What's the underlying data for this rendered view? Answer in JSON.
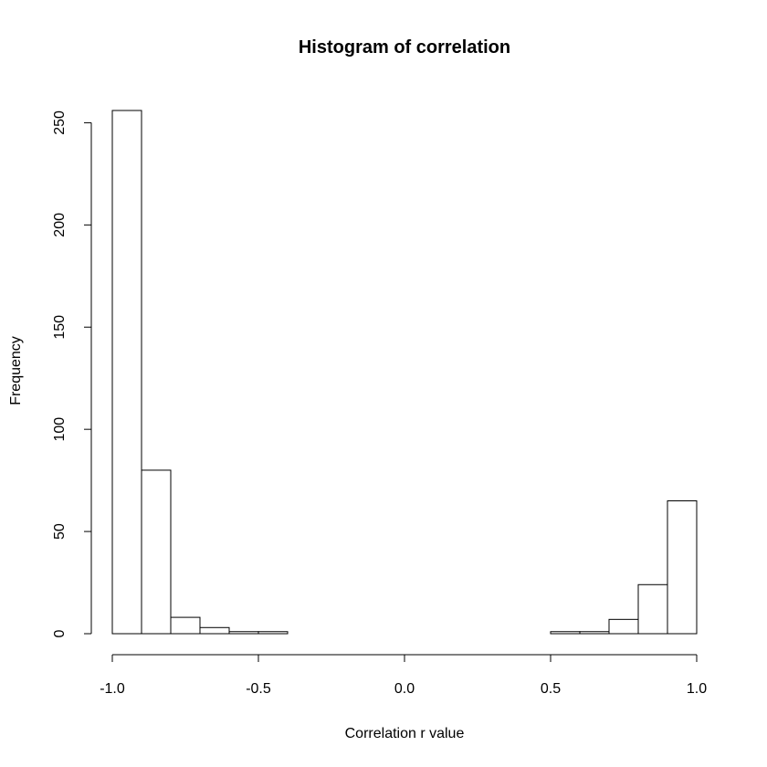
{
  "chart_data": {
    "type": "bar",
    "title": "Histogram of correlation",
    "xlabel": "Correlation r value",
    "ylabel": "Frequency",
    "xlim": [
      -1.0,
      1.0
    ],
    "ylim": [
      0,
      256
    ],
    "bin_width": 0.1,
    "bins": [
      {
        "from": -1.0,
        "to": -0.9,
        "value": 256
      },
      {
        "from": -0.9,
        "to": -0.8,
        "value": 80
      },
      {
        "from": -0.8,
        "to": -0.7,
        "value": 8
      },
      {
        "from": -0.7,
        "to": -0.6,
        "value": 3
      },
      {
        "from": -0.6,
        "to": -0.5,
        "value": 1
      },
      {
        "from": -0.5,
        "to": -0.4,
        "value": 1
      },
      {
        "from": -0.4,
        "to": -0.3,
        "value": 0
      },
      {
        "from": -0.3,
        "to": -0.2,
        "value": 0
      },
      {
        "from": -0.2,
        "to": -0.1,
        "value": 0
      },
      {
        "from": -0.1,
        "to": 0.0,
        "value": 0
      },
      {
        "from": 0.0,
        "to": 0.1,
        "value": 0
      },
      {
        "from": 0.1,
        "to": 0.2,
        "value": 0
      },
      {
        "from": 0.2,
        "to": 0.3,
        "value": 0
      },
      {
        "from": 0.3,
        "to": 0.4,
        "value": 0
      },
      {
        "from": 0.4,
        "to": 0.5,
        "value": 0
      },
      {
        "from": 0.5,
        "to": 0.6,
        "value": 1
      },
      {
        "from": 0.6,
        "to": 0.7,
        "value": 1
      },
      {
        "from": 0.7,
        "to": 0.8,
        "value": 7
      },
      {
        "from": 0.8,
        "to": 0.9,
        "value": 24
      },
      {
        "from": 0.9,
        "to": 1.0,
        "value": 65
      }
    ],
    "x_ticks": [
      -1.0,
      -0.5,
      0.0,
      0.5,
      1.0
    ],
    "x_tick_labels": [
      "-1.0",
      "-0.5",
      "0.0",
      "0.5",
      "1.0"
    ],
    "y_ticks": [
      0,
      50,
      100,
      150,
      200,
      250
    ],
    "y_tick_labels": [
      "0",
      "50",
      "100",
      "150",
      "200",
      "250"
    ],
    "grid": false,
    "legend": "none"
  }
}
